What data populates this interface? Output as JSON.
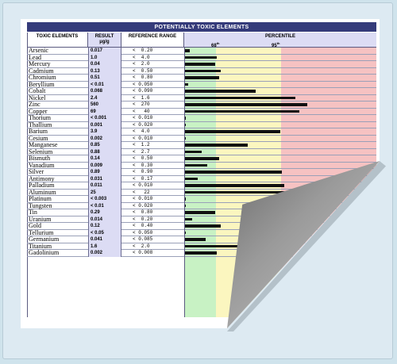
{
  "table": {
    "title": "POTENTIALLY TOXIC ELEMENTS",
    "headers": {
      "elements": "TOXIC ELEMENTS",
      "result": "RESULT",
      "result_unit": "µg/g",
      "reference": "REFERENCE RANGE",
      "percentile": "PERCENTILE",
      "p68": "68",
      "p95": "95",
      "th": "th"
    },
    "colors": {
      "green": "#c8f2c4",
      "yellow": "#fbf6bf",
      "red": "#f6c2c2",
      "header": "#353b7a"
    },
    "rows": [
      {
        "element": "Arsenic",
        "result": "0.017",
        "reference": "<  0.20",
        "level": 0.03
      },
      {
        "element": "Lead",
        "result": "1.0",
        "reference": "<  4.0",
        "level": 0.17
      },
      {
        "element": "Mercury",
        "result": "0.04",
        "reference": "<  2.0",
        "level": 0.16
      },
      {
        "element": "Cadmium",
        "result": "0.13",
        "reference": "<  0.50",
        "level": 0.19
      },
      {
        "element": "Chromium",
        "result": "0.51",
        "reference": "<  0.80",
        "level": 0.18
      },
      {
        "element": "Beryllium",
        "result": "< 0.01",
        "reference": "< 0.050",
        "level": 0.02
      },
      {
        "element": "Cobalt",
        "result": "0.068",
        "reference": "< 0.090",
        "level": 0.37
      },
      {
        "element": "Nickel",
        "result": "2.4",
        "reference": "<  1.6",
        "level": 0.58
      },
      {
        "element": "Zinc",
        "result": "560",
        "reference": "<  270",
        "level": 0.64
      },
      {
        "element": "Copper",
        "result": "69",
        "reference": "<   40",
        "level": 0.6
      },
      {
        "element": "Thorium",
        "result": "< 0.001",
        "reference": "< 0.010",
        "level": 0.01
      },
      {
        "element": "Thallium",
        "result": "0.001",
        "reference": "< 0.020",
        "level": 0.01
      },
      {
        "element": "Barium",
        "result": "3.9",
        "reference": "<  4.0",
        "level": 0.5
      },
      {
        "element": "Cesium",
        "result": "0.002",
        "reference": "< 0.010",
        "level": 0.01
      },
      {
        "element": "Manganese",
        "result": "0.85",
        "reference": "<  1.2",
        "level": 0.33
      },
      {
        "element": "Selenium",
        "result": "0.88",
        "reference": "<  2.7",
        "level": 0.09
      },
      {
        "element": "Bismuth",
        "result": "0.14",
        "reference": "<  0.50",
        "level": 0.18
      },
      {
        "element": "Vanadium",
        "result": "0.009",
        "reference": "<  0.30",
        "level": 0.12
      },
      {
        "element": "Silver",
        "result": "0.89",
        "reference": "<  0.90",
        "level": 0.51
      },
      {
        "element": "Antimony",
        "result": "0.031",
        "reference": "<  0.17",
        "level": 0.07
      },
      {
        "element": "Palladium",
        "result": "0.011",
        "reference": "< 0.010",
        "level": 0.52
      },
      {
        "element": "Aluminum",
        "result": "25",
        "reference": "<   22",
        "level": 0.53
      },
      {
        "element": "Platinum",
        "result": "< 0.003",
        "reference": "< 0.010",
        "level": 0.01
      },
      {
        "element": "Tungsten",
        "result": "< 0.01",
        "reference": "< 0.020",
        "level": 0.01
      },
      {
        "element": "Tin",
        "result": "0.29",
        "reference": "<  0.80",
        "level": 0.16
      },
      {
        "element": "Uranium",
        "result": "0.014",
        "reference": "<  0.20",
        "level": 0.04
      },
      {
        "element": "Gold",
        "result": "0.12",
        "reference": "<  0.40",
        "level": 0.19
      },
      {
        "element": "Tellurium",
        "result": "< 0.05",
        "reference": "< 0.050",
        "level": 0.01
      },
      {
        "element": "Germanium",
        "result": "0.041",
        "reference": "< 0.085",
        "level": 0.11
      },
      {
        "element": "Titanium",
        "result": "1.6",
        "reference": "<  2.0",
        "level": 0.37
      },
      {
        "element": "Gadolinium",
        "result": "0.002",
        "reference": "< 0.008",
        "level": 0.17
      }
    ]
  }
}
